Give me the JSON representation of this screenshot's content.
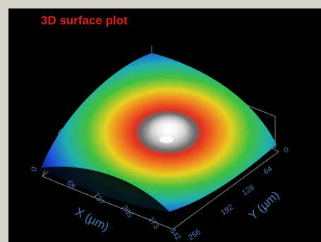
{
  "window": {
    "title": "3D surface plot"
  },
  "plot": {
    "x_axis": {
      "label": "X (µm)",
      "ticks": [
        "68",
        "137",
        "205",
        "273",
        "342"
      ]
    },
    "y_axis": {
      "label": "Y (µm)",
      "ticks": [
        "0",
        "64",
        "128",
        "192",
        "256"
      ]
    },
    "z_axis": {
      "ticks": [
        "0"
      ]
    }
  }
}
